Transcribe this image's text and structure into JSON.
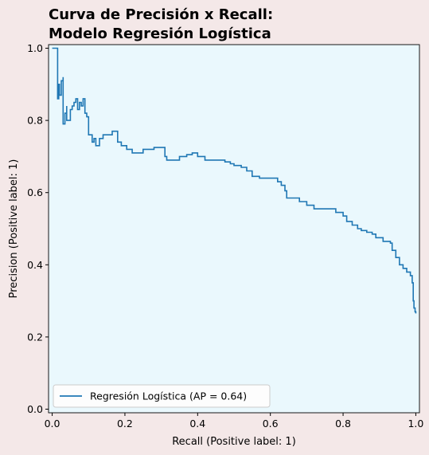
{
  "chart_data": {
    "type": "line",
    "title_lines": [
      "Curva de Precisión x Recall:",
      "Modelo Regresión Logística"
    ],
    "xlabel": "Recall (Positive label: 1)",
    "ylabel": "Precision (Positive label: 1)",
    "xlim": [
      -0.01,
      1.01
    ],
    "ylim": [
      -0.01,
      1.01
    ],
    "xticks": [
      "0.0",
      "0.2",
      "0.4",
      "0.6",
      "0.8",
      "1.0"
    ],
    "yticks": [
      "0.0",
      "0.2",
      "0.4",
      "0.6",
      "0.8",
      "1.0"
    ],
    "grid": false,
    "legend_position": "lower-left",
    "plot_background": "#eaf8fd",
    "figure_background": "#f4e8e8",
    "series": [
      {
        "name": "Regresión Logística (AP = 0.64)",
        "color": "#1f77b4",
        "step": true,
        "points": [
          [
            0.0,
            1.0
          ],
          [
            0.002,
            1.0
          ],
          [
            0.015,
            1.0
          ],
          [
            0.015,
            0.86
          ],
          [
            0.018,
            0.9
          ],
          [
            0.02,
            0.87
          ],
          [
            0.025,
            0.91
          ],
          [
            0.03,
            0.92
          ],
          [
            0.03,
            0.79
          ],
          [
            0.035,
            0.82
          ],
          [
            0.04,
            0.84
          ],
          [
            0.04,
            0.8
          ],
          [
            0.05,
            0.83
          ],
          [
            0.055,
            0.84
          ],
          [
            0.06,
            0.85
          ],
          [
            0.065,
            0.86
          ],
          [
            0.07,
            0.83
          ],
          [
            0.075,
            0.85
          ],
          [
            0.08,
            0.84
          ],
          [
            0.085,
            0.86
          ],
          [
            0.09,
            0.82
          ],
          [
            0.095,
            0.81
          ],
          [
            0.1,
            0.81
          ],
          [
            0.1,
            0.76
          ],
          [
            0.11,
            0.74
          ],
          [
            0.115,
            0.75
          ],
          [
            0.12,
            0.73
          ],
          [
            0.13,
            0.75
          ],
          [
            0.14,
            0.76
          ],
          [
            0.15,
            0.76
          ],
          [
            0.165,
            0.77
          ],
          [
            0.175,
            0.77
          ],
          [
            0.18,
            0.74
          ],
          [
            0.19,
            0.73
          ],
          [
            0.205,
            0.72
          ],
          [
            0.22,
            0.71
          ],
          [
            0.235,
            0.71
          ],
          [
            0.25,
            0.72
          ],
          [
            0.265,
            0.72
          ],
          [
            0.28,
            0.725
          ],
          [
            0.3,
            0.725
          ],
          [
            0.31,
            0.7
          ],
          [
            0.315,
            0.69
          ],
          [
            0.33,
            0.69
          ],
          [
            0.35,
            0.7
          ],
          [
            0.37,
            0.705
          ],
          [
            0.385,
            0.71
          ],
          [
            0.4,
            0.7
          ],
          [
            0.42,
            0.69
          ],
          [
            0.45,
            0.69
          ],
          [
            0.475,
            0.685
          ],
          [
            0.49,
            0.68
          ],
          [
            0.5,
            0.675
          ],
          [
            0.52,
            0.67
          ],
          [
            0.535,
            0.66
          ],
          [
            0.55,
            0.645
          ],
          [
            0.57,
            0.64
          ],
          [
            0.59,
            0.64
          ],
          [
            0.62,
            0.63
          ],
          [
            0.63,
            0.62
          ],
          [
            0.64,
            0.605
          ],
          [
            0.645,
            0.585
          ],
          [
            0.67,
            0.585
          ],
          [
            0.68,
            0.575
          ],
          [
            0.7,
            0.565
          ],
          [
            0.72,
            0.555
          ],
          [
            0.75,
            0.555
          ],
          [
            0.78,
            0.545
          ],
          [
            0.8,
            0.535
          ],
          [
            0.81,
            0.52
          ],
          [
            0.825,
            0.51
          ],
          [
            0.84,
            0.5
          ],
          [
            0.85,
            0.495
          ],
          [
            0.865,
            0.49
          ],
          [
            0.88,
            0.485
          ],
          [
            0.89,
            0.475
          ],
          [
            0.91,
            0.465
          ],
          [
            0.93,
            0.46
          ],
          [
            0.935,
            0.44
          ],
          [
            0.945,
            0.42
          ],
          [
            0.955,
            0.4
          ],
          [
            0.965,
            0.39
          ],
          [
            0.975,
            0.38
          ],
          [
            0.985,
            0.37
          ],
          [
            0.99,
            0.35
          ],
          [
            0.993,
            0.3
          ],
          [
            0.995,
            0.28
          ],
          [
            0.998,
            0.27
          ],
          [
            1.0,
            0.265
          ]
        ]
      }
    ]
  }
}
